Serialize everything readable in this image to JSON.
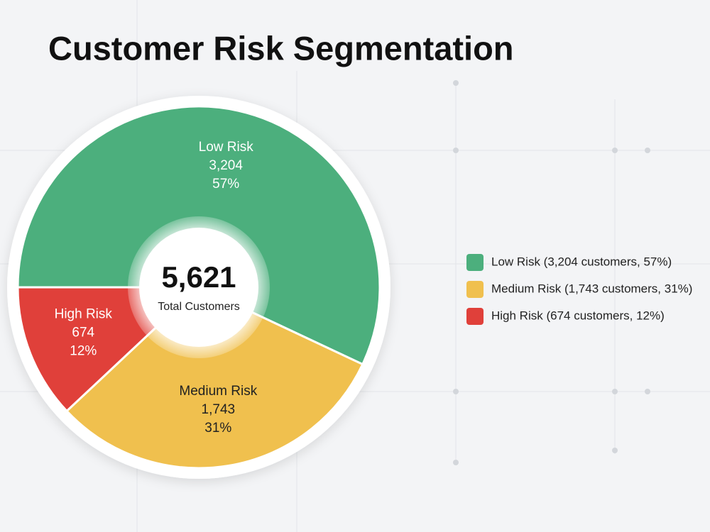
{
  "chart_data": {
    "type": "pie",
    "title": "Customer Risk Segmentation",
    "categories": [
      "Low Risk",
      "Medium Risk",
      "High Risk"
    ],
    "values": [
      3204,
      1743,
      674
    ],
    "value_labels": [
      "3,204",
      "1,743",
      "674"
    ],
    "percent_labels": [
      "57%",
      "31%",
      "12%"
    ],
    "colors": [
      "#4caf7d",
      "#f0c04e",
      "#e0403a"
    ],
    "total_label": "5,621",
    "total_caption": "Total Customers",
    "legend_labels": [
      "Low Risk (3,204 customers, 57%)",
      "Medium Risk (1,743 customers, 31%)",
      "High Risk (674 customers, 12%)"
    ]
  }
}
